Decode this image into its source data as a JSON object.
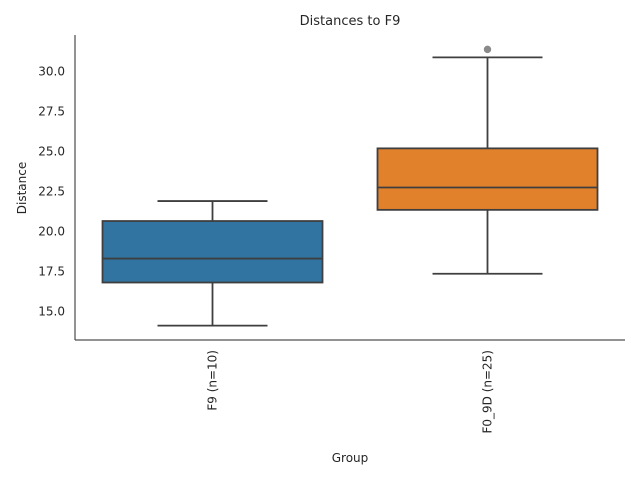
{
  "chart_data": {
    "type": "box",
    "title": "Distances to F9",
    "xlabel": "Group",
    "ylabel": "Distance",
    "ylim": [
      13.2,
      32.3
    ],
    "yticks": [
      15.0,
      17.5,
      20.0,
      22.5,
      25.0,
      27.5,
      30.0
    ],
    "ytick_labels": [
      "15.0",
      "17.5",
      "20.0",
      "22.5",
      "25.0",
      "27.5",
      "30.0"
    ],
    "grid": false,
    "categories": [
      "F9 (n=10)",
      "F0_9D (n=25)"
    ],
    "boxes": [
      {
        "category": "F9 (n=10)",
        "whisker_low": 14.1,
        "q1": 16.8,
        "median": 18.3,
        "q3": 20.65,
        "whisker_high": 21.9,
        "outliers": [],
        "color": "#3274a1"
      },
      {
        "category": "F0_9D (n=25)",
        "whisker_low": 17.35,
        "q1": 21.35,
        "median": 22.75,
        "q3": 25.2,
        "whisker_high": 30.9,
        "outliers": [
          31.4
        ],
        "color": "#e1812c"
      }
    ]
  }
}
